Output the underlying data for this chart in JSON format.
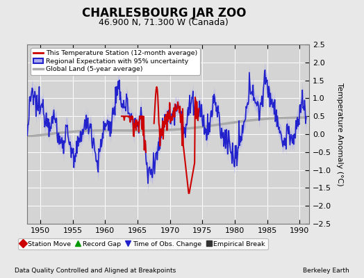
{
  "title": "CHARLESBOURG JAR ZOO",
  "subtitle": "46.900 N, 71.300 W (Canada)",
  "ylabel": "Temperature Anomaly (°C)",
  "footer_left": "Data Quality Controlled and Aligned at Breakpoints",
  "footer_right": "Berkeley Earth",
  "xlim": [
    1948.0,
    1991.5
  ],
  "ylim": [
    -2.5,
    2.5
  ],
  "xticks": [
    1950,
    1955,
    1960,
    1965,
    1970,
    1975,
    1980,
    1985,
    1990
  ],
  "yticks": [
    -2.5,
    -2,
    -1.5,
    -1,
    -0.5,
    0,
    0.5,
    1,
    1.5,
    2,
    2.5
  ],
  "bg_color": "#e8e8e8",
  "plot_bg_color": "#d4d4d4",
  "grid_color": "#ffffff",
  "title_fontsize": 12,
  "subtitle_fontsize": 9,
  "ylabel_fontsize": 8,
  "tick_fontsize": 8,
  "legend1_labels": [
    "This Temperature Station (12-month average)",
    "Regional Expectation with 95% uncertainty",
    "Global Land (5-year average)"
  ],
  "legend1_colors": [
    "#cc0000",
    "#2222cc",
    "#aaaaaa"
  ],
  "legend2_labels": [
    "Station Move",
    "Record Gap",
    "Time of Obs. Change",
    "Empirical Break"
  ],
  "legend2_markers": [
    "D",
    "^",
    "v",
    "s"
  ],
  "legend2_colors": [
    "#cc0000",
    "#009900",
    "#2222cc",
    "#333333"
  ],
  "uncertainty_color": "#aaaaee",
  "uncertainty_alpha": 0.55,
  "regional_color": "#2222cc",
  "regional_lw": 1.2,
  "station_color": "#cc0000",
  "station_lw": 1.5,
  "global_color": "#aaaaaa",
  "global_lw": 2.5
}
